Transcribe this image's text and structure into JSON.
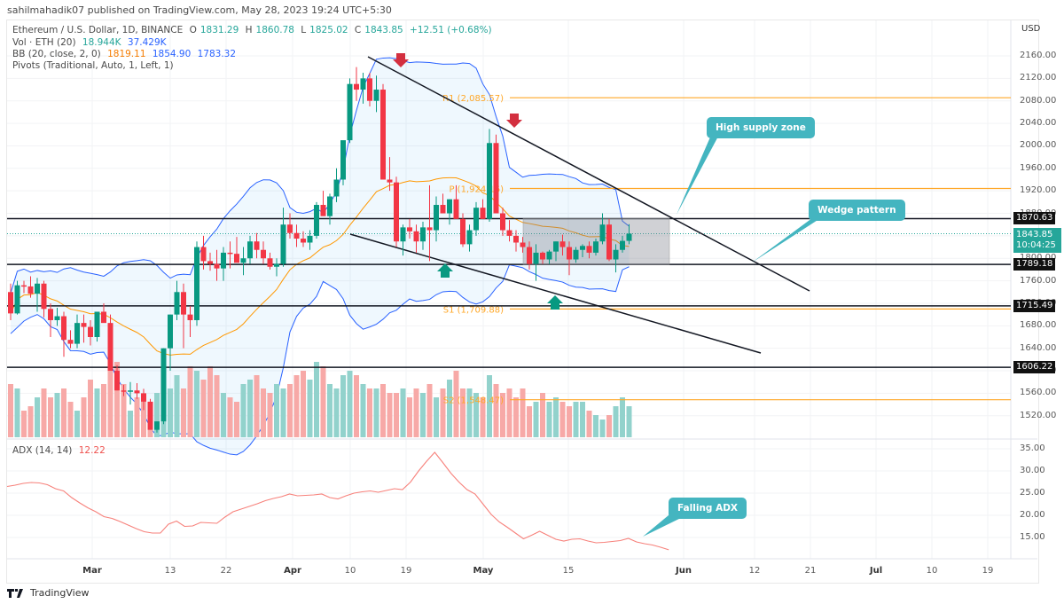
{
  "header": {
    "published": "sahilmahadik07 published on TradingView.com, May 28, 2023 19:24 UTC+5:30"
  },
  "legend": {
    "symbol": "Ethereum / U.S. Dollar, 1D, BINANCE",
    "open_label": "O",
    "open": "1831.29",
    "high_label": "H",
    "high": "1860.78",
    "low_label": "L",
    "low": "1825.02",
    "close_label": "C",
    "close": "1843.85",
    "change": "+12.51 (+0.68%)",
    "vol_label": "Vol · ETH (20)",
    "vol1": "18.944K",
    "vol2": "37.429K",
    "bb_label": "BB (20, close, 2, 0)",
    "bb_basis": "1819.11",
    "bb_upper": "1854.90",
    "bb_lower": "1783.32",
    "pivots_label": "Pivots (Traditional, Auto, 1, Left, 1)",
    "adx_label": "ADX (14, 14)",
    "adx_value": "12.22"
  },
  "price_axis": {
    "currency": "USD",
    "ticks": [
      "2160.00",
      "2120.00",
      "2080.00",
      "2040.00",
      "2000.00",
      "1960.00",
      "1920.00",
      "1880.00",
      "1840.00",
      "1800.00",
      "1760.00",
      "1720.00",
      "1680.00",
      "1640.00",
      "1600.00",
      "1560.00",
      "1520.00"
    ],
    "levels": [
      {
        "label": "1870.63",
        "value": 1870.63
      },
      {
        "label": "1789.18",
        "value": 1789.18
      },
      {
        "label": "1715.49",
        "value": 1715.49
      },
      {
        "label": "1606.22",
        "value": 1606.22
      }
    ],
    "last_price": "1843.85",
    "countdown": "10:04:25"
  },
  "adx_axis": {
    "ticks": [
      "35.00",
      "30.00",
      "25.00",
      "20.00",
      "15.00"
    ]
  },
  "time_axis": [
    {
      "label": "Mar",
      "x": 104,
      "bold": true
    },
    {
      "label": "13",
      "x": 192,
      "bold": false
    },
    {
      "label": "22",
      "x": 255,
      "bold": false
    },
    {
      "label": "Apr",
      "x": 330,
      "bold": true
    },
    {
      "label": "10",
      "x": 395,
      "bold": false
    },
    {
      "label": "19",
      "x": 458,
      "bold": false
    },
    {
      "label": "May",
      "x": 545,
      "bold": true
    },
    {
      "label": "15",
      "x": 641,
      "bold": false
    },
    {
      "label": "Jun",
      "x": 771,
      "bold": true
    },
    {
      "label": "12",
      "x": 851,
      "bold": false
    },
    {
      "label": "21",
      "x": 914,
      "bold": false
    },
    {
      "label": "Jul",
      "x": 988,
      "bold": true
    },
    {
      "label": "10",
      "x": 1051,
      "bold": false
    },
    {
      "label": "19",
      "x": 1114,
      "bold": false
    }
  ],
  "pivots": [
    {
      "label": "R1 (2,085.57)",
      "value": 2085.57
    },
    {
      "label": "P (1,924.16)",
      "value": 1924.16
    },
    {
      "label": "S1 (1,709.88)",
      "value": 1709.88
    },
    {
      "label": "S2 (1,548.47)",
      "value": 1548.47
    }
  ],
  "annotations": {
    "high_supply_zone": "High supply zone",
    "wedge_pattern": "Wedge pattern",
    "falling_adx": "Falling ADX"
  },
  "colors": {
    "up": "#089981",
    "down": "#f23645",
    "vol_up": "#92d2cc",
    "vol_down": "#f7a9a7",
    "bb_band": "#2962ff",
    "bb_basis": "#ff9800",
    "pivot": "#ffa726",
    "adx": "#f7817b",
    "callout": "#44b5c0"
  },
  "branding": {
    "name": "TradingView"
  },
  "chart_data": [
    {
      "type": "candlestick",
      "title": "Ethereum / U.S. Dollar, 1D, BINANCE",
      "xlabel": "",
      "ylabel": "USD",
      "ylim": [
        1500,
        2180
      ],
      "x_start": "2023-02-20",
      "x_end": "2023-05-28",
      "candles": [
        [
          1740,
          1755,
          1690,
          1702
        ],
        [
          1702,
          1760,
          1700,
          1752
        ],
        [
          1752,
          1760,
          1738,
          1750
        ],
        [
          1750,
          1768,
          1730,
          1737
        ],
        [
          1737,
          1765,
          1705,
          1755
        ],
        [
          1755,
          1760,
          1695,
          1710
        ],
        [
          1710,
          1720,
          1660,
          1690
        ],
        [
          1690,
          1712,
          1680,
          1697
        ],
        [
          1697,
          1705,
          1625,
          1655
        ],
        [
          1655,
          1672,
          1640,
          1648
        ],
        [
          1648,
          1700,
          1640,
          1685
        ],
        [
          1685,
          1700,
          1650,
          1678
        ],
        [
          1678,
          1690,
          1645,
          1660
        ],
        [
          1660,
          1705,
          1652,
          1705
        ],
        [
          1705,
          1720,
          1698,
          1685
        ],
        [
          1685,
          1700,
          1640,
          1600
        ],
        [
          1600,
          1610,
          1565,
          1565
        ],
        [
          1565,
          1575,
          1555,
          1563
        ],
        [
          1563,
          1580,
          1540,
          1565
        ],
        [
          1565,
          1578,
          1550,
          1560
        ],
        [
          1560,
          1568,
          1530,
          1545
        ],
        [
          1545,
          1550,
          1500,
          1495
        ],
        [
          1495,
          1510,
          1490,
          1510
        ],
        [
          1510,
          1640,
          1505,
          1640
        ],
        [
          1640,
          1700,
          1600,
          1700
        ],
        [
          1700,
          1760,
          1690,
          1740
        ],
        [
          1740,
          1755,
          1640,
          1700
        ],
        [
          1700,
          1715,
          1660,
          1690
        ],
        [
          1690,
          1830,
          1680,
          1820
        ],
        [
          1820,
          1840,
          1780,
          1795
        ],
        [
          1795,
          1810,
          1778,
          1790
        ],
        [
          1790,
          1815,
          1760,
          1782
        ],
        [
          1782,
          1820,
          1760,
          1810
        ],
        [
          1810,
          1830,
          1782,
          1808
        ],
        [
          1808,
          1838,
          1800,
          1792
        ],
        [
          1792,
          1820,
          1770,
          1800
        ],
        [
          1800,
          1840,
          1790,
          1830
        ],
        [
          1830,
          1845,
          1800,
          1815
        ],
        [
          1815,
          1830,
          1790,
          1800
        ],
        [
          1800,
          1810,
          1780,
          1785
        ],
        [
          1785,
          1800,
          1768,
          1790
        ],
        [
          1790,
          1890,
          1785,
          1860
        ],
        [
          1860,
          1880,
          1835,
          1845
        ],
        [
          1845,
          1860,
          1820,
          1835
        ],
        [
          1835,
          1848,
          1820,
          1828
        ],
        [
          1828,
          1850,
          1815,
          1840
        ],
        [
          1840,
          1900,
          1835,
          1895
        ],
        [
          1895,
          1920,
          1880,
          1875
        ],
        [
          1875,
          1915,
          1860,
          1910
        ],
        [
          1910,
          1960,
          1900,
          1940
        ],
        [
          1940,
          2000,
          1930,
          2010
        ],
        [
          2010,
          2120,
          2005,
          2110
        ],
        [
          2110,
          2140,
          2080,
          2100
        ],
        [
          2100,
          2130,
          2075,
          2120
        ],
        [
          2120,
          2130,
          2070,
          2080
        ],
        [
          2080,
          2125,
          2060,
          2100
        ],
        [
          2100,
          2110,
          2040,
          1940
        ],
        [
          1940,
          1980,
          1920,
          1935
        ],
        [
          1935,
          1945,
          1820,
          1830
        ],
        [
          1830,
          1860,
          1805,
          1855
        ],
        [
          1855,
          1870,
          1835,
          1848
        ],
        [
          1848,
          1860,
          1810,
          1830
        ],
        [
          1830,
          1865,
          1815,
          1855
        ],
        [
          1855,
          1930,
          1795,
          1850
        ],
        [
          1850,
          1910,
          1830,
          1895
        ],
        [
          1895,
          1915,
          1880,
          1880
        ],
        [
          1880,
          1905,
          1860,
          1905
        ],
        [
          1905,
          1930,
          1880,
          1870
        ],
        [
          1870,
          1880,
          1820,
          1825
        ],
        [
          1825,
          1860,
          1812,
          1850
        ],
        [
          1850,
          1900,
          1840,
          1890
        ],
        [
          1890,
          1905,
          1870,
          1870
        ],
        [
          1870,
          2030,
          1865,
          2005
        ],
        [
          2005,
          2020,
          1880,
          1880
        ],
        [
          1880,
          1890,
          1840,
          1850
        ],
        [
          1850,
          1868,
          1830,
          1840
        ],
        [
          1840,
          1850,
          1812,
          1828
        ],
        [
          1828,
          1838,
          1810,
          1820
        ],
        [
          1820,
          1830,
          1780,
          1790
        ],
        [
          1790,
          1825,
          1760,
          1810
        ],
        [
          1810,
          1812,
          1790,
          1798
        ],
        [
          1798,
          1815,
          1790,
          1812
        ],
        [
          1812,
          1830,
          1795,
          1830
        ],
        [
          1830,
          1842,
          1805,
          1820
        ],
        [
          1820,
          1830,
          1770,
          1798
        ],
        [
          1798,
          1820,
          1792,
          1815
        ],
        [
          1815,
          1825,
          1802,
          1822
        ],
        [
          1822,
          1830,
          1800,
          1810
        ],
        [
          1810,
          1835,
          1805,
          1830
        ],
        [
          1830,
          1880,
          1825,
          1860
        ],
        [
          1860,
          1870,
          1795,
          1798
        ],
        [
          1798,
          1825,
          1775,
          1815
        ],
        [
          1815,
          1840,
          1810,
          1831
        ],
        [
          1831,
          1860.78,
          1825.02,
          1843.85
        ]
      ]
    },
    {
      "type": "line",
      "title": "ADX (14, 14)",
      "ylim": [
        10,
        36
      ],
      "values": [
        26.5,
        26.8,
        27.2,
        27.4,
        27.3,
        26.9,
        26.0,
        25.5,
        24.0,
        22.8,
        21.7,
        20.8,
        19.7,
        19.3,
        18.6,
        17.8,
        17.0,
        16.3,
        16.0,
        16.0,
        18.0,
        18.7,
        17.5,
        17.6,
        18.4,
        18.3,
        18.2,
        19.6,
        20.8,
        21.4,
        22.0,
        22.6,
        23.3,
        23.8,
        24.2,
        24.8,
        24.4,
        24.5,
        24.6,
        24.8,
        24.0,
        23.7,
        24.4,
        25.0,
        25.3,
        25.5,
        25.2,
        25.6,
        26.0,
        25.8,
        27.5,
        30.0,
        32.2,
        34.2,
        31.9,
        29.5,
        27.5,
        25.8,
        24.8,
        22.5,
        20.2,
        18.5,
        17.3,
        16.0,
        14.7,
        15.5,
        16.4,
        15.5,
        14.6,
        14.2,
        14.6,
        14.7,
        14.2,
        13.8,
        13.9,
        14.1,
        14.3,
        14.8,
        14.0,
        13.6,
        13.3,
        12.8,
        12.22
      ]
    },
    {
      "type": "bar",
      "title": "Vol · ETH (20)",
      "values_note": "relative heights in px",
      "values": [
        60,
        55,
        30,
        35,
        45,
        55,
        45,
        50,
        55,
        40,
        30,
        45,
        65,
        55,
        60,
        75,
        85,
        60,
        30,
        45,
        40,
        35,
        50,
        55,
        55,
        70,
        55,
        80,
        75,
        65,
        80,
        70,
        50,
        45,
        40,
        60,
        65,
        70,
        55,
        50,
        60,
        55,
        60,
        70,
        75,
        65,
        85,
        80,
        60,
        55,
        70,
        75,
        70,
        60,
        55,
        55,
        60,
        50,
        50,
        55,
        45,
        55,
        50,
        60,
        45,
        55,
        65,
        75,
        55,
        55,
        50,
        45,
        70,
        60,
        50,
        55,
        45,
        55,
        35,
        40,
        50,
        40,
        45,
        40,
        35,
        40,
        40,
        30,
        25,
        20,
        25,
        35,
        45,
        35,
        40,
        55,
        20,
        30
      ]
    }
  ]
}
